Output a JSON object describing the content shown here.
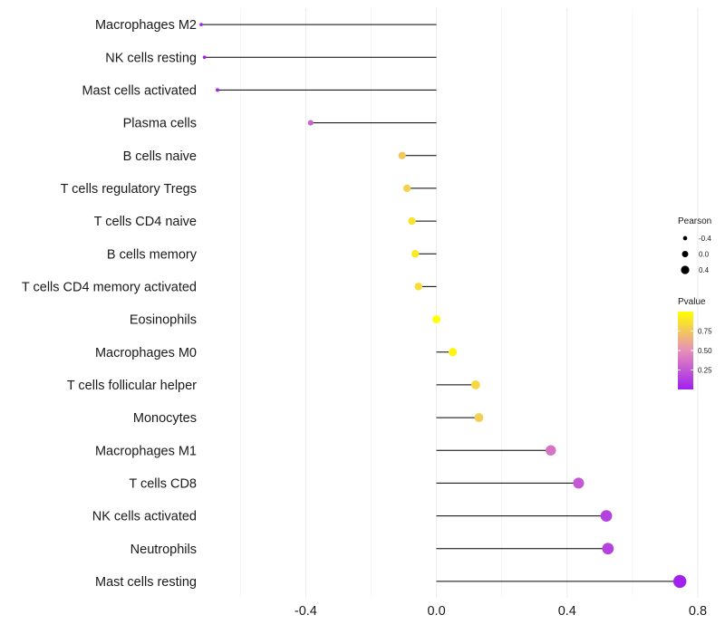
{
  "chart_data": {
    "type": "lollipop",
    "title": "",
    "xlabel": "",
    "ylabel": "",
    "xlim": [
      -0.72,
      0.8
    ],
    "xticks": [
      -0.4,
      0.0,
      0.4,
      0.8
    ],
    "xtick_labels": [
      "-0.4",
      "0.0",
      "0.4",
      "0.8"
    ],
    "categories": [
      "Macrophages M2",
      "NK cells resting",
      "Mast cells activated",
      "Plasma cells",
      "B cells naive",
      "T cells regulatory  Tregs",
      "T cells CD4 naive",
      "B cells memory",
      "T cells CD4 memory activated",
      "Eosinophils",
      "Macrophages M0",
      "T cells follicular helper",
      "Monocytes",
      "Macrophages M1",
      "T cells CD8",
      "NK cells activated",
      "Neutrophils",
      "Mast cells resting"
    ],
    "pearson": [
      -0.72,
      -0.71,
      -0.67,
      -0.385,
      -0.105,
      -0.09,
      -0.075,
      -0.065,
      -0.055,
      0.0,
      0.05,
      0.12,
      0.13,
      0.35,
      0.435,
      0.52,
      0.525,
      0.745
    ],
    "pvalue": [
      0.01,
      0.01,
      0.01,
      0.3,
      0.75,
      0.8,
      0.88,
      0.9,
      0.85,
      1.0,
      0.95,
      0.82,
      0.78,
      0.38,
      0.25,
      0.15,
      0.15,
      0.01
    ],
    "legend": {
      "position": "right",
      "size_title": "Pearson",
      "size_labels": [
        "-0.4",
        "0.0",
        "0.4"
      ],
      "size_values": [
        -0.4,
        0.0,
        0.4
      ],
      "color_title": "Pvalue",
      "color_labels": [
        "0.75",
        "0.50",
        "0.25"
      ],
      "color_values": [
        0.75,
        0.5,
        0.25
      ],
      "color_low": "#a020f0",
      "color_mid": "#e68fb8",
      "color_high": "#ffff00",
      "color_range": [
        0.0,
        1.0
      ]
    },
    "grid": true,
    "line_color": "#000000"
  }
}
